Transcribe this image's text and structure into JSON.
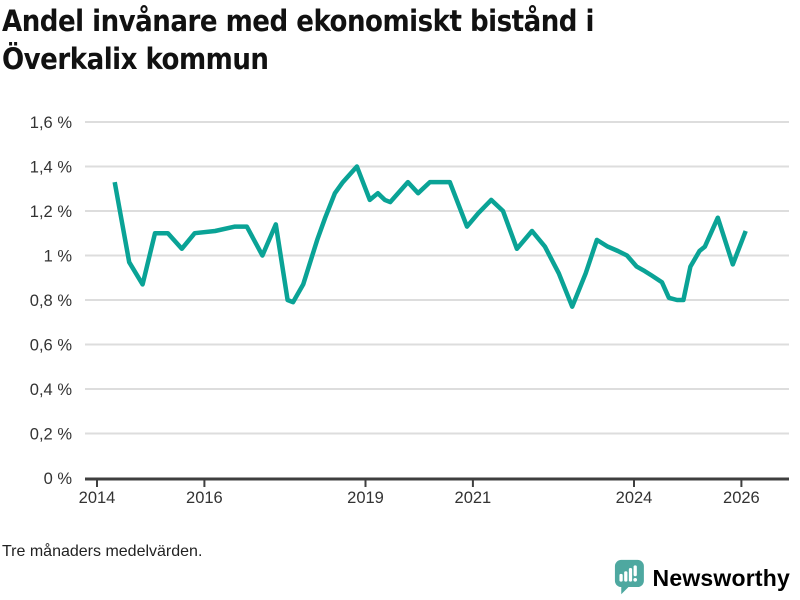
{
  "title": "Andel invånare med ekonomiskt bistånd i Överkalix kommun",
  "title_lines": [
    "Andel invånare med ekonomiskt bistånd i",
    "Överkalix kommun"
  ],
  "footnote": "Tre månaders medelvärden.",
  "branding": {
    "logo_text": "Newsworthy",
    "logo_icon": "bar-chart-speech-bubble-icon",
    "logo_color": "#4ea8a0"
  },
  "colors": {
    "background": "#ffffff",
    "line": "#0aa396",
    "grid": "#dddddd",
    "axis": "#3f3f3f",
    "tick_text": "#333333",
    "title_text": "#111111"
  },
  "chart_data": {
    "type": "line",
    "title": "Andel invånare med ekonomiskt bistånd i Överkalix kommun",
    "note": "Tre månaders medelvärden.",
    "unit": "%",
    "locale_decimal": ",",
    "xlabel": "",
    "ylabel": "",
    "xlim": [
      2013.78,
      2026.92
    ],
    "ylim": [
      0,
      1.6
    ],
    "grid": "horizontal",
    "legend": "none",
    "x_ticks": [
      {
        "value": 2014,
        "label": "2014"
      },
      {
        "value": 2016,
        "label": "2016"
      },
      {
        "value": 2019,
        "label": "2019"
      },
      {
        "value": 2021,
        "label": "2021"
      },
      {
        "value": 2024,
        "label": "2024"
      },
      {
        "value": 2026,
        "label": "2026"
      }
    ],
    "y_ticks": [
      {
        "value": 0,
        "label": "0 %"
      },
      {
        "value": 0.2,
        "label": "0,2 %"
      },
      {
        "value": 0.4,
        "label": "0,4 %"
      },
      {
        "value": 0.6,
        "label": "0,6 %"
      },
      {
        "value": 0.8,
        "label": "0,8 %"
      },
      {
        "value": 1.0,
        "label": "1 %"
      },
      {
        "value": 1.2,
        "label": "1,2 %"
      },
      {
        "value": 1.4,
        "label": "1,4 %"
      },
      {
        "value": 1.6,
        "label": "1,6 %"
      }
    ],
    "series": [
      {
        "name": "Andel invånare med ekonomiskt bistånd",
        "color": "#0aa396",
        "points": [
          [
            2014.33,
            1.33
          ],
          [
            2014.6,
            0.97
          ],
          [
            2014.85,
            0.87
          ],
          [
            2015.08,
            1.1
          ],
          [
            2015.32,
            1.1
          ],
          [
            2015.58,
            1.03
          ],
          [
            2015.82,
            1.1
          ],
          [
            2016.2,
            1.11
          ],
          [
            2016.57,
            1.13
          ],
          [
            2016.79,
            1.13
          ],
          [
            2017.08,
            1.0
          ],
          [
            2017.33,
            1.14
          ],
          [
            2017.55,
            0.8
          ],
          [
            2017.65,
            0.79
          ],
          [
            2017.84,
            0.87
          ],
          [
            2018.1,
            1.07
          ],
          [
            2018.25,
            1.17
          ],
          [
            2018.43,
            1.28
          ],
          [
            2018.58,
            1.33
          ],
          [
            2018.84,
            1.4
          ],
          [
            2019.08,
            1.25
          ],
          [
            2019.23,
            1.28
          ],
          [
            2019.36,
            1.25
          ],
          [
            2019.46,
            1.24
          ],
          [
            2019.79,
            1.33
          ],
          [
            2019.98,
            1.28
          ],
          [
            2020.2,
            1.33
          ],
          [
            2020.45,
            1.33
          ],
          [
            2020.57,
            1.33
          ],
          [
            2020.89,
            1.13
          ],
          [
            2021.1,
            1.19
          ],
          [
            2021.34,
            1.25
          ],
          [
            2021.56,
            1.2
          ],
          [
            2021.82,
            1.03
          ],
          [
            2022.1,
            1.11
          ],
          [
            2022.34,
            1.04
          ],
          [
            2022.6,
            0.92
          ],
          [
            2022.85,
            0.77
          ],
          [
            2023.1,
            0.92
          ],
          [
            2023.31,
            1.07
          ],
          [
            2023.51,
            1.04
          ],
          [
            2023.7,
            1.02
          ],
          [
            2023.87,
            1.0
          ],
          [
            2024.05,
            0.95
          ],
          [
            2024.2,
            0.93
          ],
          [
            2024.33,
            0.91
          ],
          [
            2024.52,
            0.88
          ],
          [
            2024.65,
            0.81
          ],
          [
            2024.8,
            0.8
          ],
          [
            2024.92,
            0.8
          ],
          [
            2025.05,
            0.95
          ],
          [
            2025.22,
            1.02
          ],
          [
            2025.32,
            1.04
          ],
          [
            2025.56,
            1.17
          ],
          [
            2025.84,
            0.96
          ],
          [
            2026.08,
            1.11
          ]
        ]
      }
    ]
  }
}
